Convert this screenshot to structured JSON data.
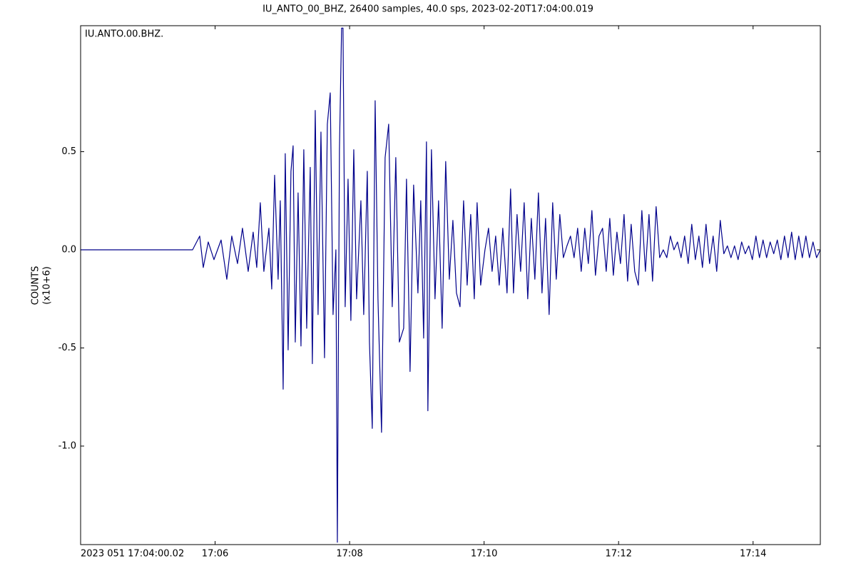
{
  "chart_data": {
    "type": "line",
    "title": "IU_ANTO_00_BHZ, 26400 samples, 40.0 sps, 2023-02-20T17:04:00.019",
    "ylabel": [
      "COUNTS",
      "(x10+6)"
    ],
    "xlim": [
      4,
      15
    ],
    "ylim": [
      -1.502,
      1.142
    ],
    "xticks": [
      {
        "value": 4,
        "label": "2023 051 17:04:00.02"
      },
      {
        "value": 6,
        "label": "17:06"
      },
      {
        "value": 8,
        "label": "17:08"
      },
      {
        "value": 10,
        "label": "17:10"
      },
      {
        "value": 12,
        "label": "17:12"
      },
      {
        "value": 14,
        "label": "17:14"
      }
    ],
    "yticks": [
      0.5,
      {
        "value": 0,
        "label": "0.0"
      },
      -0.5,
      {
        "value": -1,
        "label": "-1.0"
      }
    ],
    "x": [
      4,
      5.6,
      5.665,
      5.771,
      5.824,
      5.898,
      5.983,
      6.089,
      6.174,
      6.248,
      6.333,
      6.407,
      6.492,
      6.566,
      6.619,
      6.672,
      6.725,
      6.8,
      6.842,
      6.885,
      6.937,
      6.969,
      7.012,
      7.043,
      7.086,
      7.128,
      7.16,
      7.192,
      7.234,
      7.277,
      7.319,
      7.362,
      7.415,
      7.446,
      7.489,
      7.531,
      7.574,
      7.627,
      7.669,
      7.712,
      7.754,
      7.796,
      7.818,
      7.849,
      7.881,
      7.902,
      7.934,
      7.977,
      8.019,
      8.062,
      8.104,
      8.168,
      8.21,
      8.263,
      8.295,
      8.337,
      8.38,
      8.422,
      8.475,
      8.528,
      8.581,
      8.634,
      8.687,
      8.74,
      8.804,
      8.846,
      8.899,
      8.952,
      9.016,
      9.058,
      9.101,
      9.143,
      9.164,
      9.217,
      9.27,
      9.323,
      9.376,
      9.429,
      9.483,
      9.536,
      9.589,
      9.642,
      9.695,
      9.748,
      9.801,
      9.854,
      9.896,
      9.949,
      10.013,
      10.066,
      10.119,
      10.172,
      10.225,
      10.278,
      10.341,
      10.394,
      10.437,
      10.49,
      10.543,
      10.596,
      10.649,
      10.702,
      10.755,
      10.808,
      10.861,
      10.914,
      10.967,
      11.02,
      11.073,
      11.126,
      11.179,
      11.232,
      11.285,
      11.338,
      11.391,
      11.444,
      11.497,
      11.55,
      11.603,
      11.656,
      11.709,
      11.762,
      11.816,
      11.869,
      11.922,
      11.975,
      12.028,
      12.081,
      12.134,
      12.187,
      12.24,
      12.293,
      12.346,
      12.399,
      12.452,
      12.505,
      12.558,
      12.611,
      12.664,
      12.717,
      12.77,
      12.823,
      12.876,
      12.929,
      12.982,
      13.035,
      13.088,
      13.141,
      13.194,
      13.247,
      13.3,
      13.353,
      13.406,
      13.459,
      13.512,
      13.565,
      13.618,
      13.671,
      13.724,
      13.777,
      13.83,
      13.883,
      13.936,
      13.989,
      14.042,
      14.095,
      14.148,
      14.201,
      14.254,
      14.307,
      14.36,
      14.413,
      14.467,
      14.52,
      14.573,
      14.626,
      14.679,
      14.732,
      14.785,
      14.838,
      14.891,
      14.944,
      15
    ],
    "series": [
      {
        "name": "IU.ANTO.00.BHZ.",
        "color": "#00008b",
        "values": [
          0,
          0,
          0,
          0.07,
          -0.09,
          0.04,
          -0.05,
          0.05,
          -0.15,
          0.07,
          -0.07,
          0.11,
          -0.11,
          0.09,
          -0.09,
          0.24,
          -0.11,
          0.11,
          -0.2,
          0.38,
          -0.15,
          0.25,
          -0.71,
          0.49,
          -0.51,
          0.4,
          0.53,
          -0.47,
          0.29,
          -0.49,
          0.51,
          -0.4,
          0.42,
          -0.58,
          0.71,
          -0.33,
          0.6,
          -0.55,
          0.64,
          0.8,
          -0.33,
          0,
          -1.49,
          0.51,
          1.13,
          1.13,
          -0.29,
          0.36,
          -0.36,
          0.51,
          -0.25,
          0.25,
          -0.33,
          0.4,
          -0.47,
          -0.91,
          0.76,
          -0.25,
          -0.93,
          0.47,
          0.64,
          -0.29,
          0.47,
          -0.47,
          -0.4,
          0.36,
          -0.62,
          0.33,
          -0.22,
          0.25,
          -0.45,
          0.55,
          -0.82,
          0.51,
          -0.25,
          0.25,
          -0.4,
          0.45,
          -0.15,
          0.15,
          -0.22,
          -0.29,
          0.25,
          -0.18,
          0.18,
          -0.25,
          0.24,
          -0.18,
          0,
          0.11,
          -0.11,
          0.07,
          -0.18,
          0.11,
          -0.22,
          0.31,
          -0.22,
          0.18,
          -0.11,
          0.24,
          -0.25,
          0.16,
          -0.15,
          0.29,
          -0.22,
          0.16,
          -0.33,
          0.24,
          -0.15,
          0.18,
          -0.04,
          0.02,
          0.07,
          -0.04,
          0.11,
          -0.11,
          0.11,
          -0.07,
          0.2,
          -0.13,
          0.07,
          0.11,
          -0.11,
          0.16,
          -0.13,
          0.09,
          -0.07,
          0.18,
          -0.16,
          0.13,
          -0.11,
          -0.18,
          0.2,
          -0.11,
          0.18,
          -0.16,
          0.22,
          -0.04,
          0,
          -0.04,
          0.07,
          0,
          0.04,
          -0.04,
          0.07,
          -0.07,
          0.13,
          -0.05,
          0.07,
          -0.09,
          0.13,
          -0.07,
          0.07,
          -0.11,
          0.15,
          -0.02,
          0.02,
          -0.04,
          0.02,
          -0.05,
          0.04,
          -0.02,
          0.02,
          -0.05,
          0.07,
          -0.04,
          0.05,
          -0.04,
          0.04,
          -0.02,
          0.05,
          -0.05,
          0.07,
          -0.04,
          0.09,
          -0.05,
          0.07,
          -0.04,
          0.07,
          -0.04,
          0.04,
          -0.04,
          0
        ]
      }
    ]
  }
}
